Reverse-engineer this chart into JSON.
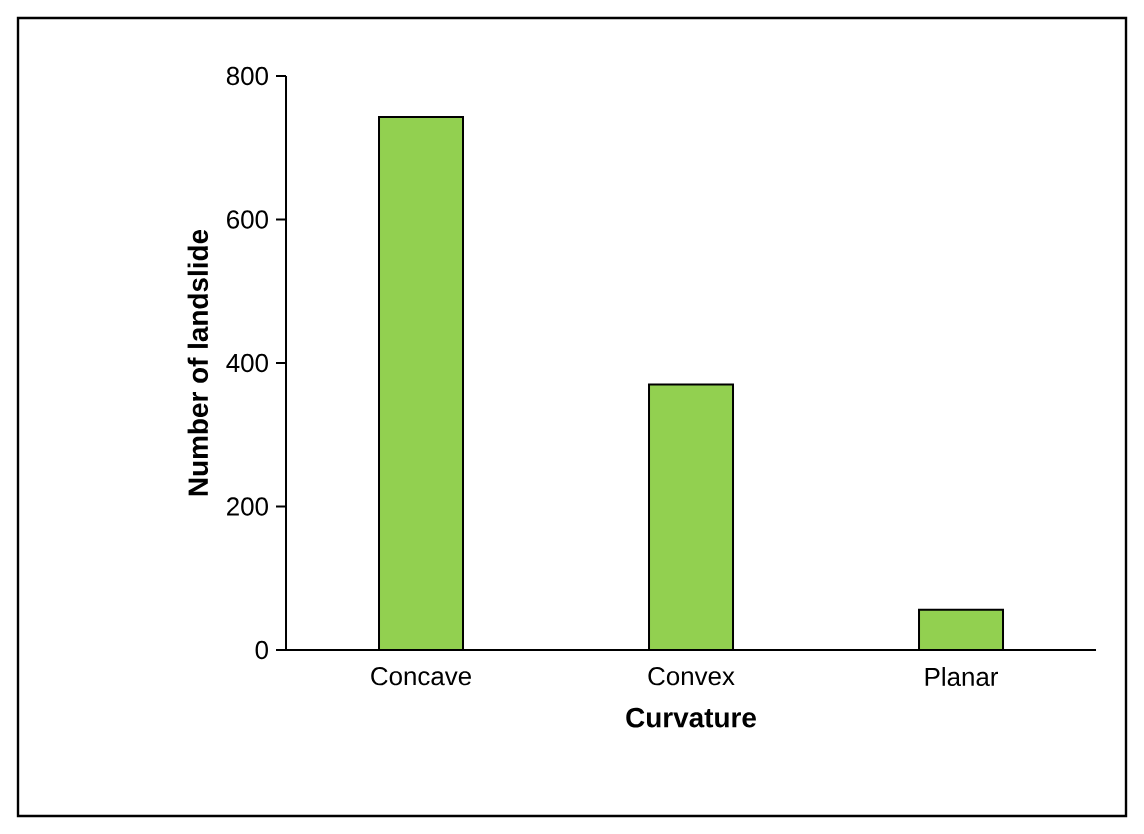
{
  "chart_data": {
    "type": "bar",
    "xlabel": "Curvature",
    "ylabel": "Number of landslide",
    "categories": [
      "Concave",
      "Convex",
      "Planar"
    ],
    "values": [
      743,
      370,
      56
    ],
    "color": "#92d050",
    "ylim": [
      0,
      800
    ],
    "yticks": [
      0,
      200,
      400,
      600,
      800
    ],
    "grid": false
  }
}
